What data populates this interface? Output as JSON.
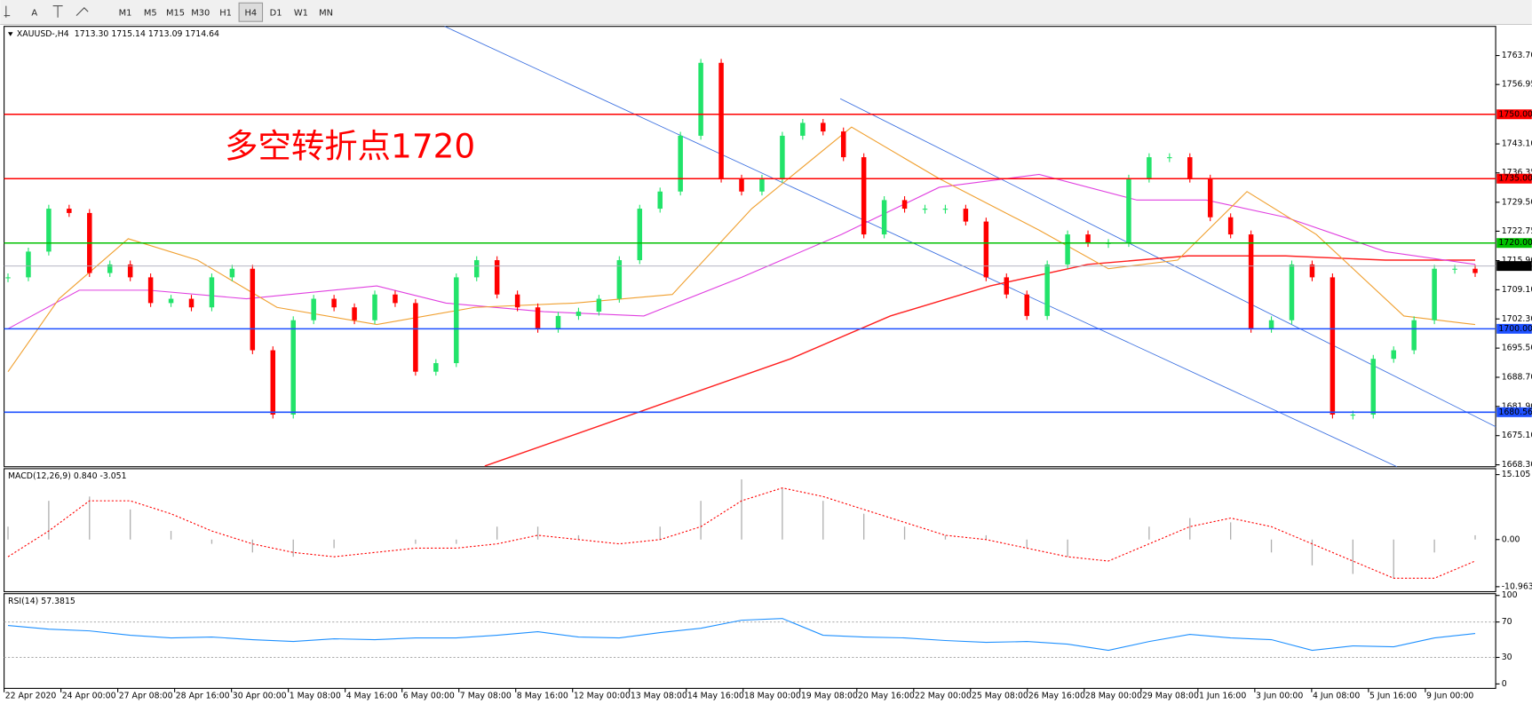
{
  "toolbar": {
    "font_button": "A",
    "timeframes": [
      "M1",
      "M5",
      "M15",
      "M30",
      "H1",
      "H4",
      "D1",
      "W1",
      "MN"
    ],
    "active": "H4"
  },
  "chart_data": [
    {
      "type": "candlestick",
      "title": "XAUUSD-,H4",
      "quote": "1713.30 1715.14 1713.09 1714.64",
      "annotation": "多空转折点1720",
      "ylim": [
        1667.85,
        1770.5
      ],
      "yticks": [
        {
          "value": 1763.7,
          "label": "1763.70"
        },
        {
          "value": 1756.95,
          "label": "1756.95"
        },
        {
          "value": 1743.1,
          "label": "1743.10"
        },
        {
          "value": 1736.35,
          "label": "1736.35"
        },
        {
          "value": 1729.5,
          "label": "1729.50"
        },
        {
          "value": 1722.75,
          "label": "1722.75"
        },
        {
          "value": 1715.9,
          "label": "1715.90"
        },
        {
          "value": 1709.1,
          "label": "1709.10"
        },
        {
          "value": 1702.3,
          "label": "1702.30"
        },
        {
          "value": 1695.5,
          "label": "1695.50"
        },
        {
          "value": 1688.7,
          "label": "1688.70"
        },
        {
          "value": 1681.9,
          "label": "1681.90"
        },
        {
          "value": 1675.1,
          "label": "1675.10"
        },
        {
          "value": 1668.3,
          "label": "1668.30"
        }
      ],
      "levels": [
        {
          "value": 1750,
          "label": "1750.00",
          "color": "#ff0000"
        },
        {
          "value": 1735,
          "label": "1735.00",
          "color": "#ff0000"
        },
        {
          "value": 1720,
          "label": "1720.00",
          "color": "#00c000"
        },
        {
          "value": 1714.64,
          "label": "1714.64",
          "color": "#000000"
        },
        {
          "value": 1700,
          "label": "1700.00",
          "color": "#1e50ff"
        },
        {
          "value": 1680.56,
          "label": "1680.56",
          "color": "#1e50ff"
        }
      ],
      "up_color": "#22e36a",
      "down_color": "#ff0000",
      "values": [
        1712,
        1718,
        1728,
        1727,
        1713,
        1715,
        1712,
        1706,
        1707,
        1705,
        1712,
        1714,
        1695,
        1680,
        1702,
        1707,
        1705,
        1702,
        1708,
        1706,
        1690,
        1692,
        1712,
        1716,
        1708,
        1705,
        1700,
        1703,
        1704,
        1707,
        1716,
        1728,
        1732,
        1745,
        1762,
        1735,
        1732,
        1735,
        1745,
        1748,
        1746,
        1740,
        1722,
        1730,
        1728,
        1728,
        1728,
        1725,
        1712,
        1708,
        1703,
        1715,
        1722,
        1720,
        1720,
        1735,
        1740,
        1740,
        1735,
        1726,
        1722,
        1700,
        1702,
        1715,
        1712,
        1680,
        1680,
        1693,
        1695,
        1702,
        1714,
        1714,
        1713
      ],
      "series": [
        {
          "name": "MA200",
          "color": "#ff2020",
          "x": [
            23.4,
            31.2,
            38.4,
            43.3,
            48.2,
            53,
            57.9,
            62.7,
            67.6,
            72
          ],
          "values": [
            1668,
            1681,
            1693,
            1703,
            1710,
            1715,
            1717,
            1717,
            1716,
            1716
          ]
        },
        {
          "name": "MA50",
          "color": "#e040e0",
          "x": [
            0,
            3.5,
            6.9,
            11.7,
            18.1,
            21.5,
            26.3,
            31.2,
            36,
            40.9,
            45.7,
            50.6,
            55.4,
            58.8,
            62.7,
            67.6,
            72
          ],
          "values": [
            1700,
            1709,
            1709,
            1707,
            1710,
            1706,
            1704,
            1703,
            1712,
            1722,
            1733,
            1736,
            1730,
            1730,
            1726,
            1718,
            1715
          ]
        },
        {
          "name": "MA20",
          "color": "#f0a030",
          "x": [
            0,
            2.5,
            5.9,
            9.3,
            13.2,
            18.1,
            22.9,
            27.8,
            32.6,
            36.5,
            41.4,
            45.7,
            50.6,
            54,
            57.4,
            60.8,
            64.2,
            68.5,
            72
          ],
          "values": [
            1690,
            1707,
            1721,
            1716,
            1705,
            1701,
            1705,
            1706,
            1708,
            1728,
            1747,
            1735,
            1723,
            1714,
            1716,
            1732,
            1722,
            1703,
            1701
          ]
        }
      ]
    },
    {
      "type": "macd",
      "title": "MACD(12,26,9) 0.840 -3.051",
      "ylim": [
        -12.13,
        16.48
      ],
      "yticks": [
        15.105,
        {
          "value": 0,
          "label": "0.00"
        },
        -10.963
      ],
      "step": 2,
      "histogram": [
        3,
        9,
        10,
        7,
        2,
        -1,
        -3,
        -4,
        -2,
        0,
        -1,
        -1,
        3,
        3,
        1,
        0,
        3,
        9,
        14,
        12,
        9,
        6,
        3,
        1,
        1,
        -2,
        -4,
        0,
        3,
        5,
        4,
        -3,
        -6,
        -8,
        -9,
        -3,
        1
      ],
      "signal": [
        -4,
        2,
        9,
        9,
        6,
        2,
        -1,
        -3,
        -4,
        -3,
        -2,
        -2,
        -1,
        1,
        0,
        -1,
        0,
        3,
        9,
        12,
        10,
        7,
        4,
        1,
        0,
        -2,
        -4,
        -5,
        -1,
        3,
        5,
        3,
        -1,
        -5,
        -9,
        -9,
        -5
      ]
    },
    {
      "type": "rsi",
      "title": "RSI(14) 57.3815",
      "ylim": [
        -5,
        102
      ],
      "yticks": [
        100,
        70,
        30,
        0
      ],
      "step": 2,
      "color": "#1e90ff",
      "values": [
        66,
        62,
        60,
        55,
        52,
        53,
        50,
        48,
        51,
        50,
        52,
        52,
        55,
        59,
        53,
        52,
        58,
        63,
        72,
        74,
        55,
        53,
        52,
        49,
        47,
        48,
        45,
        38,
        48,
        56,
        52,
        50,
        38,
        43,
        42,
        52,
        57
      ]
    }
  ],
  "x_labels": [
    "22 Apr 2020",
    "24 Apr 00:00",
    "27 Apr 08:00",
    "28 Apr 16:00",
    "30 Apr 00:00",
    "1 May 08:00",
    "4 May 16:00",
    "6 May 00:00",
    "7 May 08:00",
    "8 May 16:00",
    "12 May 00:00",
    "13 May 08:00",
    "14 May 16:00",
    "18 May 00:00",
    "19 May 08:00",
    "20 May 16:00",
    "22 May 00:00",
    "25 May 08:00",
    "26 May 16:00",
    "28 May 00:00",
    "29 May 08:00",
    "1 Jun 16:00",
    "3 Jun 00:00",
    "4 Jun 08:00",
    "5 Jun 16:00",
    "9 Jun 00:00"
  ]
}
